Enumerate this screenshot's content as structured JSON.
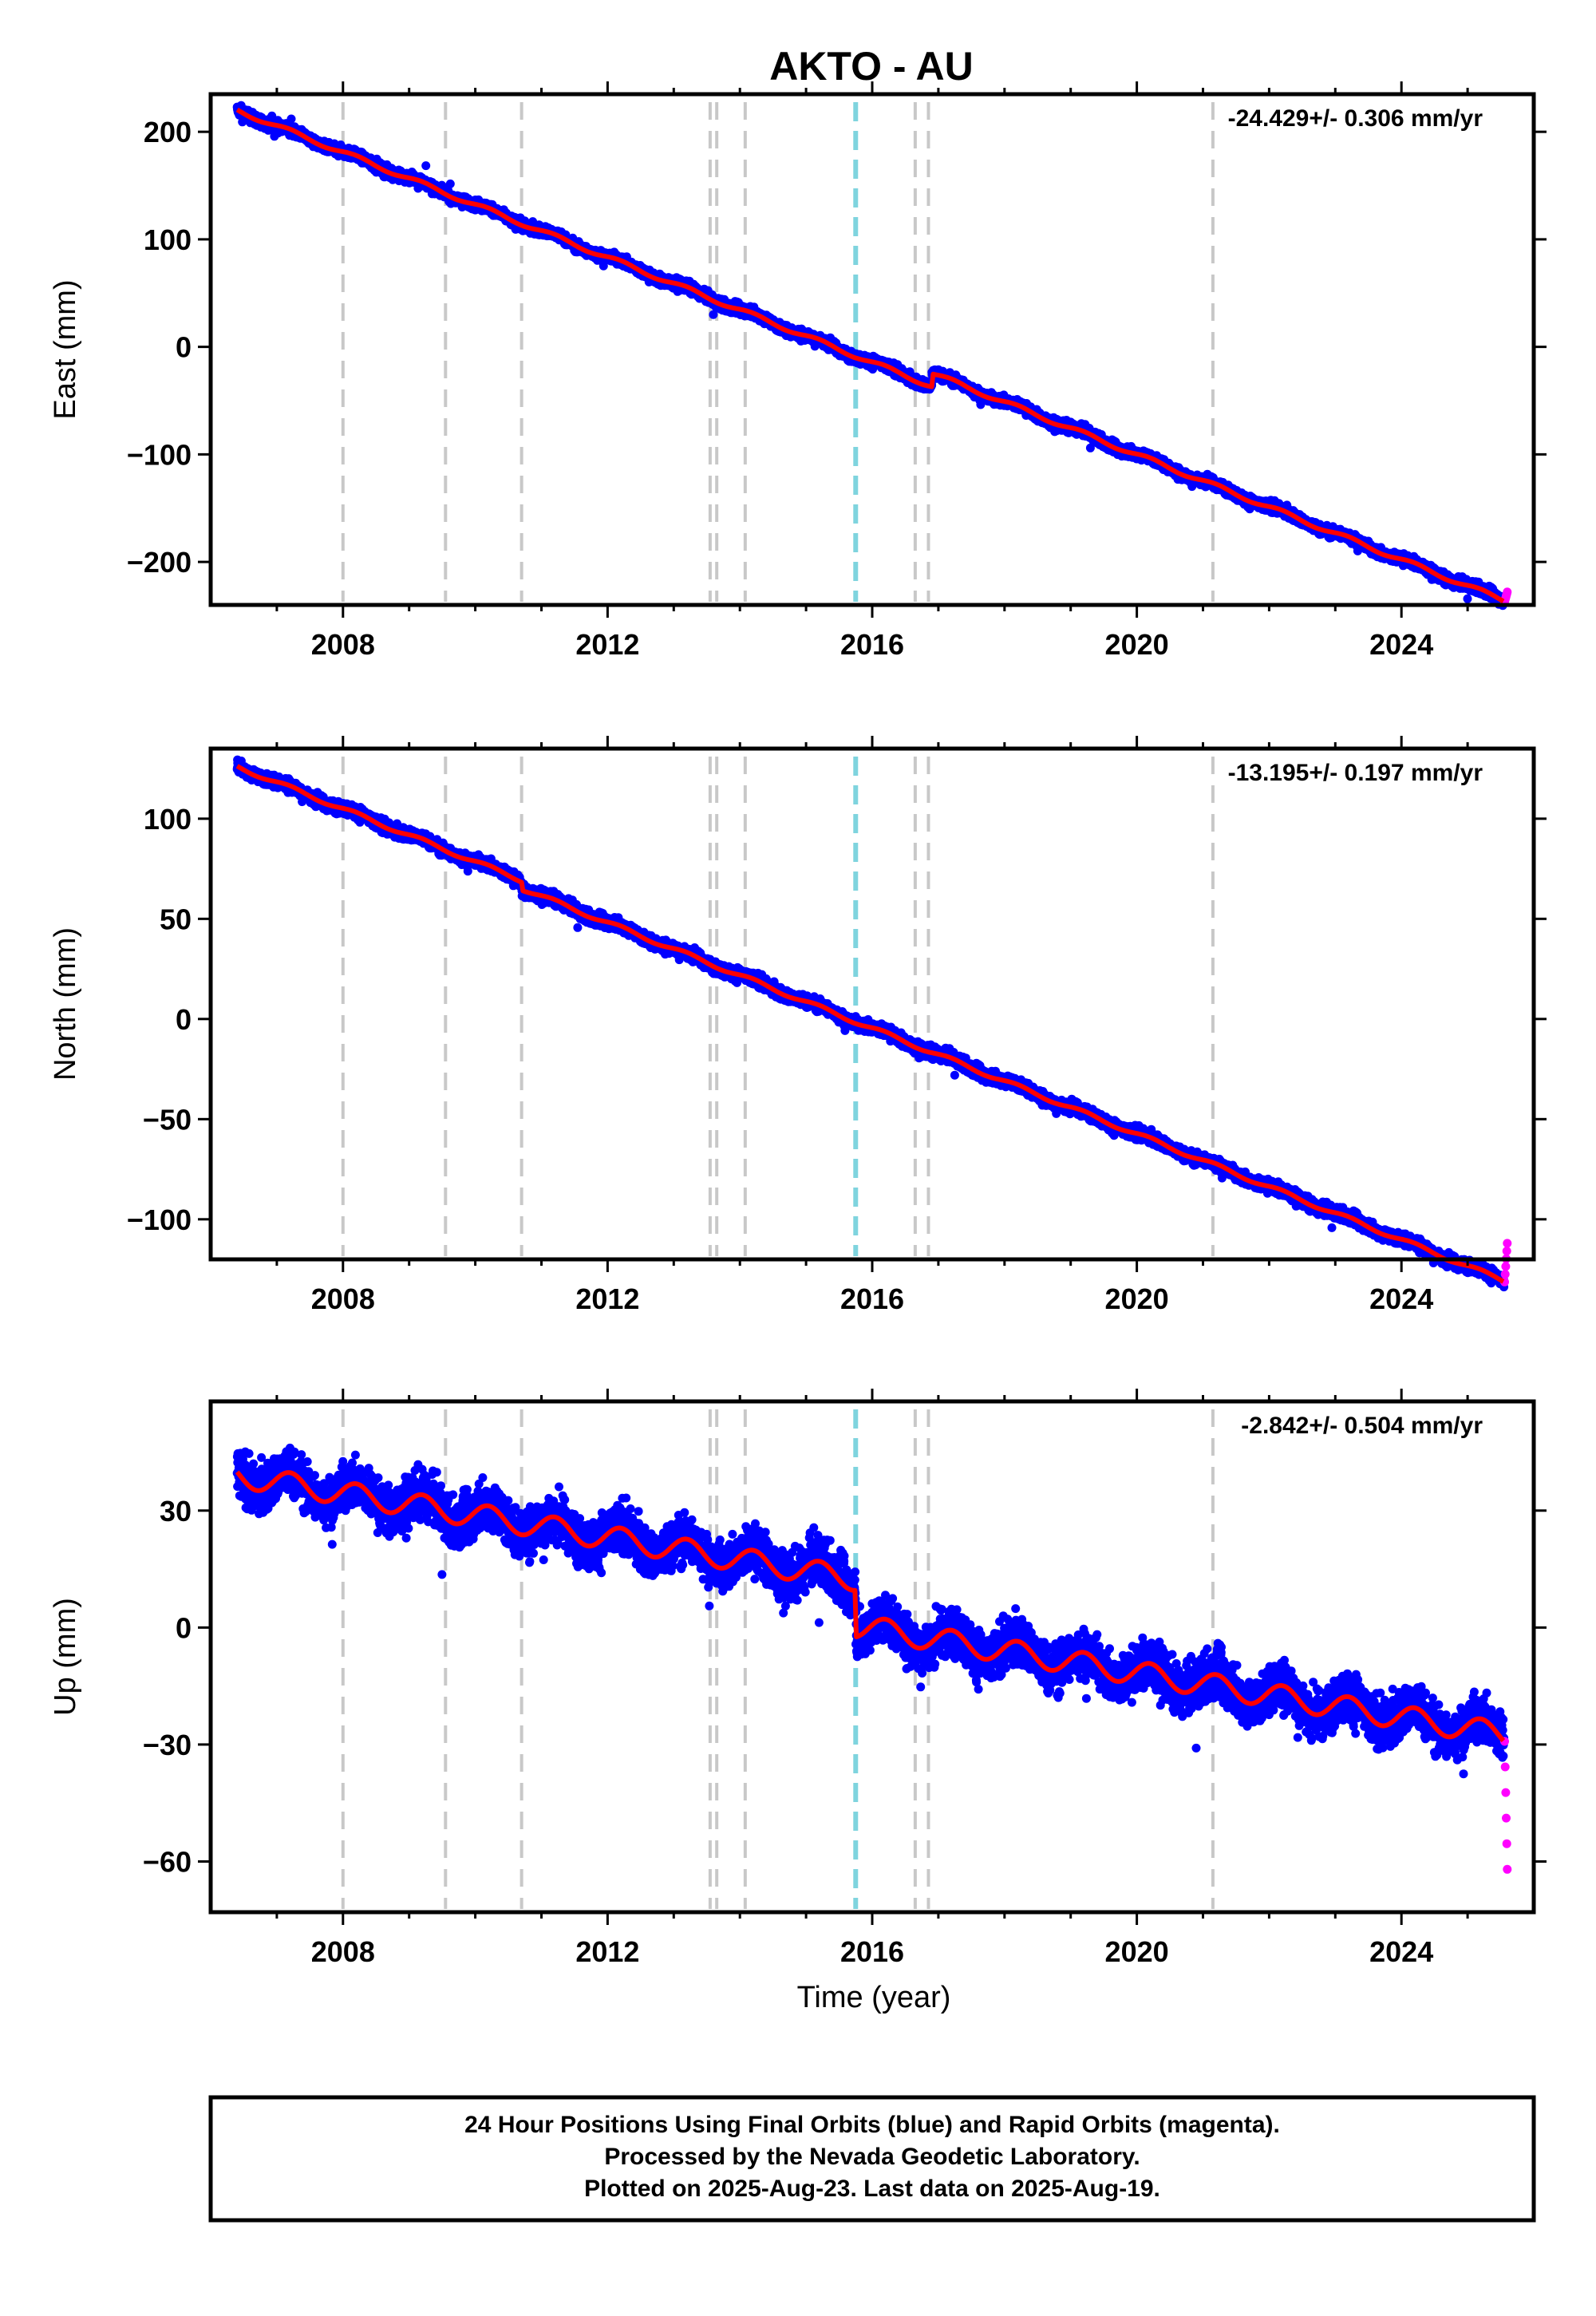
{
  "title": "AKTO - AU",
  "footer": {
    "lines": [
      "24 Hour Positions Using Final Orbits (blue) and Rapid Orbits (magenta).",
      "Processed by the Nevada Geodetic Laboratory.",
      "Plotted on 2025-Aug-23. Last data on 2025-Aug-19."
    ]
  },
  "xlabel": "Time (year)",
  "colors": {
    "final_orbits": "#0000ff",
    "rapid_orbits": "#ff00ff",
    "model": "#ff0000",
    "equipment_change": "#c8c8c8",
    "earthquake": "#7fd4de"
  },
  "chart_data": [
    {
      "type": "scatter",
      "ylabel": "East (mm)",
      "rate_label": "-24.429+/- 0.306 mm/yr",
      "xlim": [
        2006.0,
        2026.0
      ],
      "ylim": [
        -240,
        235
      ],
      "xticks": [
        2008,
        2012,
        2016,
        2020,
        2024
      ],
      "yticks": [
        200,
        100,
        0,
        -100,
        -200
      ],
      "ytick_labels": [
        "200",
        "100",
        "0",
        "−100",
        "−200"
      ],
      "start": 2006.4,
      "end": 2025.55,
      "rate": -24.429,
      "start_value": 220,
      "offsets": [
        {
          "t": 2016.9,
          "v": 12
        }
      ],
      "noise": 4,
      "annual_amp": 2,
      "rapid_end": -228,
      "grid": false,
      "legend": "none"
    },
    {
      "type": "scatter",
      "ylabel": "North (mm)",
      "rate_label": "-13.195+/- 0.197 mm/yr",
      "xlim": [
        2006.0,
        2026.0
      ],
      "ylim": [
        -120,
        135
      ],
      "xticks": [
        2008,
        2012,
        2016,
        2020,
        2024
      ],
      "yticks": [
        100,
        50,
        0,
        -50,
        -100
      ],
      "ytick_labels": [
        "100",
        "50",
        "0",
        "−50",
        "−100"
      ],
      "start": 2006.4,
      "end": 2025.55,
      "rate": -13.195,
      "start_value": 126,
      "offsets": [
        {
          "t": 2010.7,
          "v": -4
        }
      ],
      "noise": 2.5,
      "annual_amp": 1,
      "rapid_end": -112,
      "grid": false,
      "legend": "none"
    },
    {
      "type": "scatter",
      "ylabel": "Up (mm)",
      "rate_label": "-2.842+/- 0.504 mm/yr",
      "xlim": [
        2006.0,
        2026.0
      ],
      "ylim": [
        -73,
        58
      ],
      "xticks": [
        2008,
        2012,
        2016,
        2020,
        2024
      ],
      "yticks": [
        30,
        0,
        -30,
        -60
      ],
      "ytick_labels": [
        "30",
        "0",
        "−30",
        "−60"
      ],
      "start": 2006.4,
      "end": 2025.55,
      "rate": -2.842,
      "start_value": 39,
      "offsets": [
        {
          "t": 2015.75,
          "v": -12
        }
      ],
      "noise": 5,
      "annual_amp": 3,
      "rapid_end": -62,
      "grid": false,
      "legend": "none"
    }
  ],
  "equipment_changes": [
    2008.0,
    2009.55,
    2010.7,
    2013.55,
    2013.65,
    2014.08,
    2016.65,
    2016.85,
    2021.15
  ],
  "earthquakes": [
    2015.75
  ]
}
